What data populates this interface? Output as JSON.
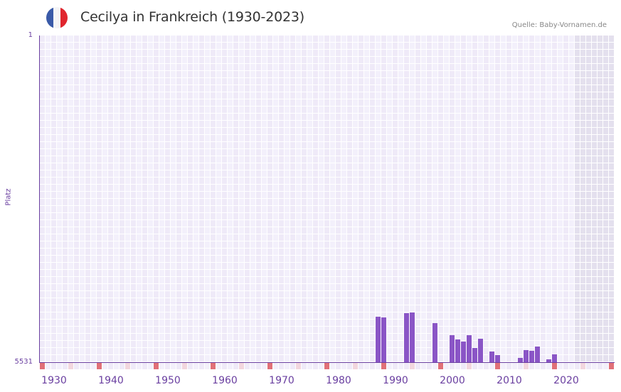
{
  "header": {
    "title": "Cecilya in Frankreich (1930-2023)",
    "flag": {
      "name": "france-flag-icon",
      "colors": [
        "#3a5aa8",
        "#f4f4f6",
        "#e0262e"
      ]
    },
    "source": "Quelle: Baby-Vornamen.de"
  },
  "colors": {
    "bar": "#8a55c6",
    "axis": "#6a3fa0",
    "grid_bg_a": "#efeaf8",
    "grid_bg_b": "#f3f0fb",
    "grid_shaded": "#e4e0ee",
    "marker_decade": "#e07078",
    "marker_half": "#f2d6de"
  },
  "chart_data": {
    "type": "bar",
    "title": "Cecilya in Frankreich (1930-2023)",
    "xlabel": "",
    "ylabel": "Platz",
    "y_inverted": true,
    "ylim": [
      1,
      5531
    ],
    "yticks": [
      "1",
      "5531"
    ],
    "xlim": [
      1928,
      2028
    ],
    "xticks": [
      "1930",
      "1940",
      "1950",
      "1960",
      "1970",
      "1980",
      "1990",
      "2000",
      "2010",
      "2020"
    ],
    "grid": true,
    "shaded_from_year": 2022,
    "x": [
      1987,
      1988,
      1992,
      1993,
      1997,
      2000,
      2001,
      2002,
      2003,
      2004,
      2005,
      2007,
      2008,
      2012,
      2013,
      2014,
      2015,
      2017,
      2018
    ],
    "values": [
      4762,
      4774,
      4702,
      4690,
      4870,
      5074,
      5146,
      5182,
      5074,
      5291,
      5134,
      5351,
      5411,
      5459,
      5327,
      5339,
      5267,
      5483,
      5399
    ]
  }
}
